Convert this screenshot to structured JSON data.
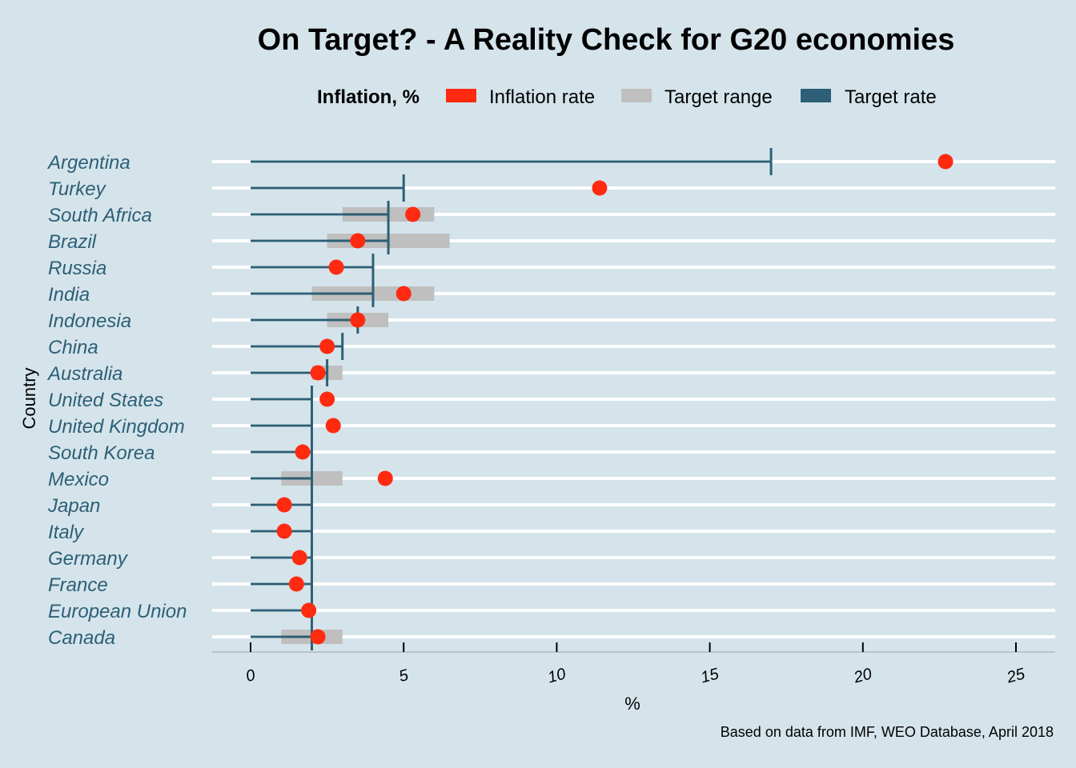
{
  "chart_data": {
    "type": "dot-range",
    "title": "On Target? - A Reality Check for G20 economies",
    "legend": {
      "title": "Inflation, %",
      "items": [
        {
          "label": "Inflation rate",
          "color": "#ff2a10"
        },
        {
          "label": "Target range",
          "color": "#bfbfbf"
        },
        {
          "label": "Target rate",
          "color": "#2d5f77"
        }
      ]
    },
    "xlabel": "%",
    "ylabel": "Country",
    "xlim": [
      -2.5,
      26.3
    ],
    "x_ticks": [
      0,
      5,
      10,
      15,
      20,
      25
    ],
    "caption": "Based on data from IMF, WEO Database, April 2018",
    "countries": [
      {
        "name": "Argentina",
        "inflation": 22.7,
        "target": 17,
        "range": null
      },
      {
        "name": "Turkey",
        "inflation": 11.4,
        "target": 5,
        "range": null
      },
      {
        "name": "South Africa",
        "inflation": 5.3,
        "target": 4.5,
        "range": [
          3,
          6
        ]
      },
      {
        "name": "Brazil",
        "inflation": 3.5,
        "target": 4.5,
        "range": [
          2.5,
          6.5
        ]
      },
      {
        "name": "Russia",
        "inflation": 2.8,
        "target": 4,
        "range": null
      },
      {
        "name": "India",
        "inflation": 5.0,
        "target": 4,
        "range": [
          2,
          6
        ]
      },
      {
        "name": "Indonesia",
        "inflation": 3.5,
        "target": 3.5,
        "range": [
          2.5,
          4.5
        ]
      },
      {
        "name": "China",
        "inflation": 2.5,
        "target": 3,
        "range": null
      },
      {
        "name": "Australia",
        "inflation": 2.2,
        "target": 2.5,
        "range": [
          2,
          3
        ]
      },
      {
        "name": "United States",
        "inflation": 2.5,
        "target": 2,
        "range": null
      },
      {
        "name": "United Kingdom",
        "inflation": 2.7,
        "target": 2,
        "range": null
      },
      {
        "name": "South Korea",
        "inflation": 1.7,
        "target": 2,
        "range": null
      },
      {
        "name": "Mexico",
        "inflation": 4.4,
        "target": 2,
        "range": [
          1,
          3
        ]
      },
      {
        "name": "Japan",
        "inflation": 1.1,
        "target": 2,
        "range": null
      },
      {
        "name": "Italy",
        "inflation": 1.1,
        "target": 2,
        "range": null
      },
      {
        "name": "Germany",
        "inflation": 1.6,
        "target": 2,
        "range": null
      },
      {
        "name": "France",
        "inflation": 1.5,
        "target": 2,
        "range": null
      },
      {
        "name": "European Union",
        "inflation": 1.9,
        "target": 2,
        "range": null
      },
      {
        "name": "Canada",
        "inflation": 2.2,
        "target": 2,
        "range": [
          1,
          3
        ]
      }
    ]
  }
}
